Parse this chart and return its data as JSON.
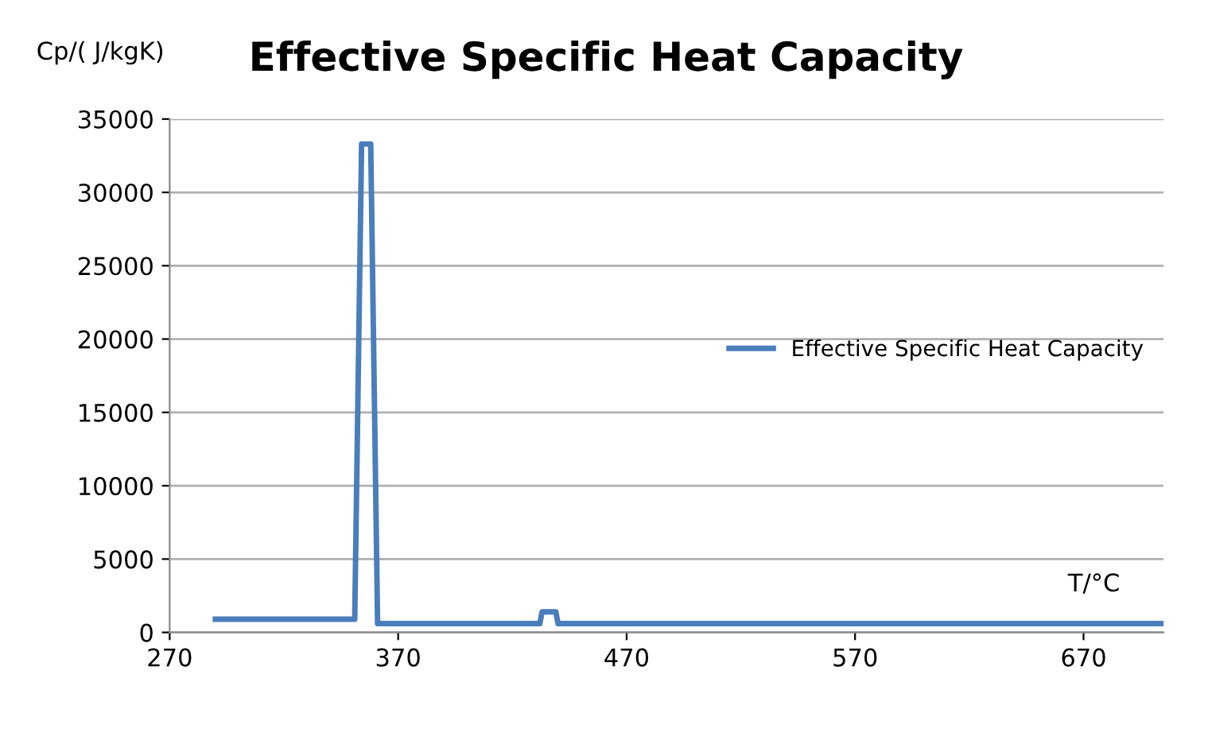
{
  "chart_data": {
    "type": "line",
    "title": "Effective Specific Heat Capacity",
    "xlabel": "T/°C",
    "ylabel": "Cp/( J/kgK)",
    "series": [
      {
        "name": "Effective Specific Heat Capacity",
        "color": "#4a7ebb",
        "x": [
          290,
          351,
          354,
          358,
          361,
          432,
          433,
          439,
          440,
          705
        ],
        "values": [
          900,
          900,
          33300,
          33300,
          600,
          600,
          1400,
          1400,
          600,
          600
        ]
      }
    ],
    "xlim": [
      270,
      705
    ],
    "xticks": [
      270,
      370,
      470,
      570,
      670
    ],
    "ylim": [
      0,
      35000
    ],
    "yticks": [
      0,
      5000,
      10000,
      15000,
      20000,
      25000,
      30000,
      35000
    ],
    "grid": "y",
    "legend": "right",
    "marker": "none",
    "line_style": "solid"
  }
}
